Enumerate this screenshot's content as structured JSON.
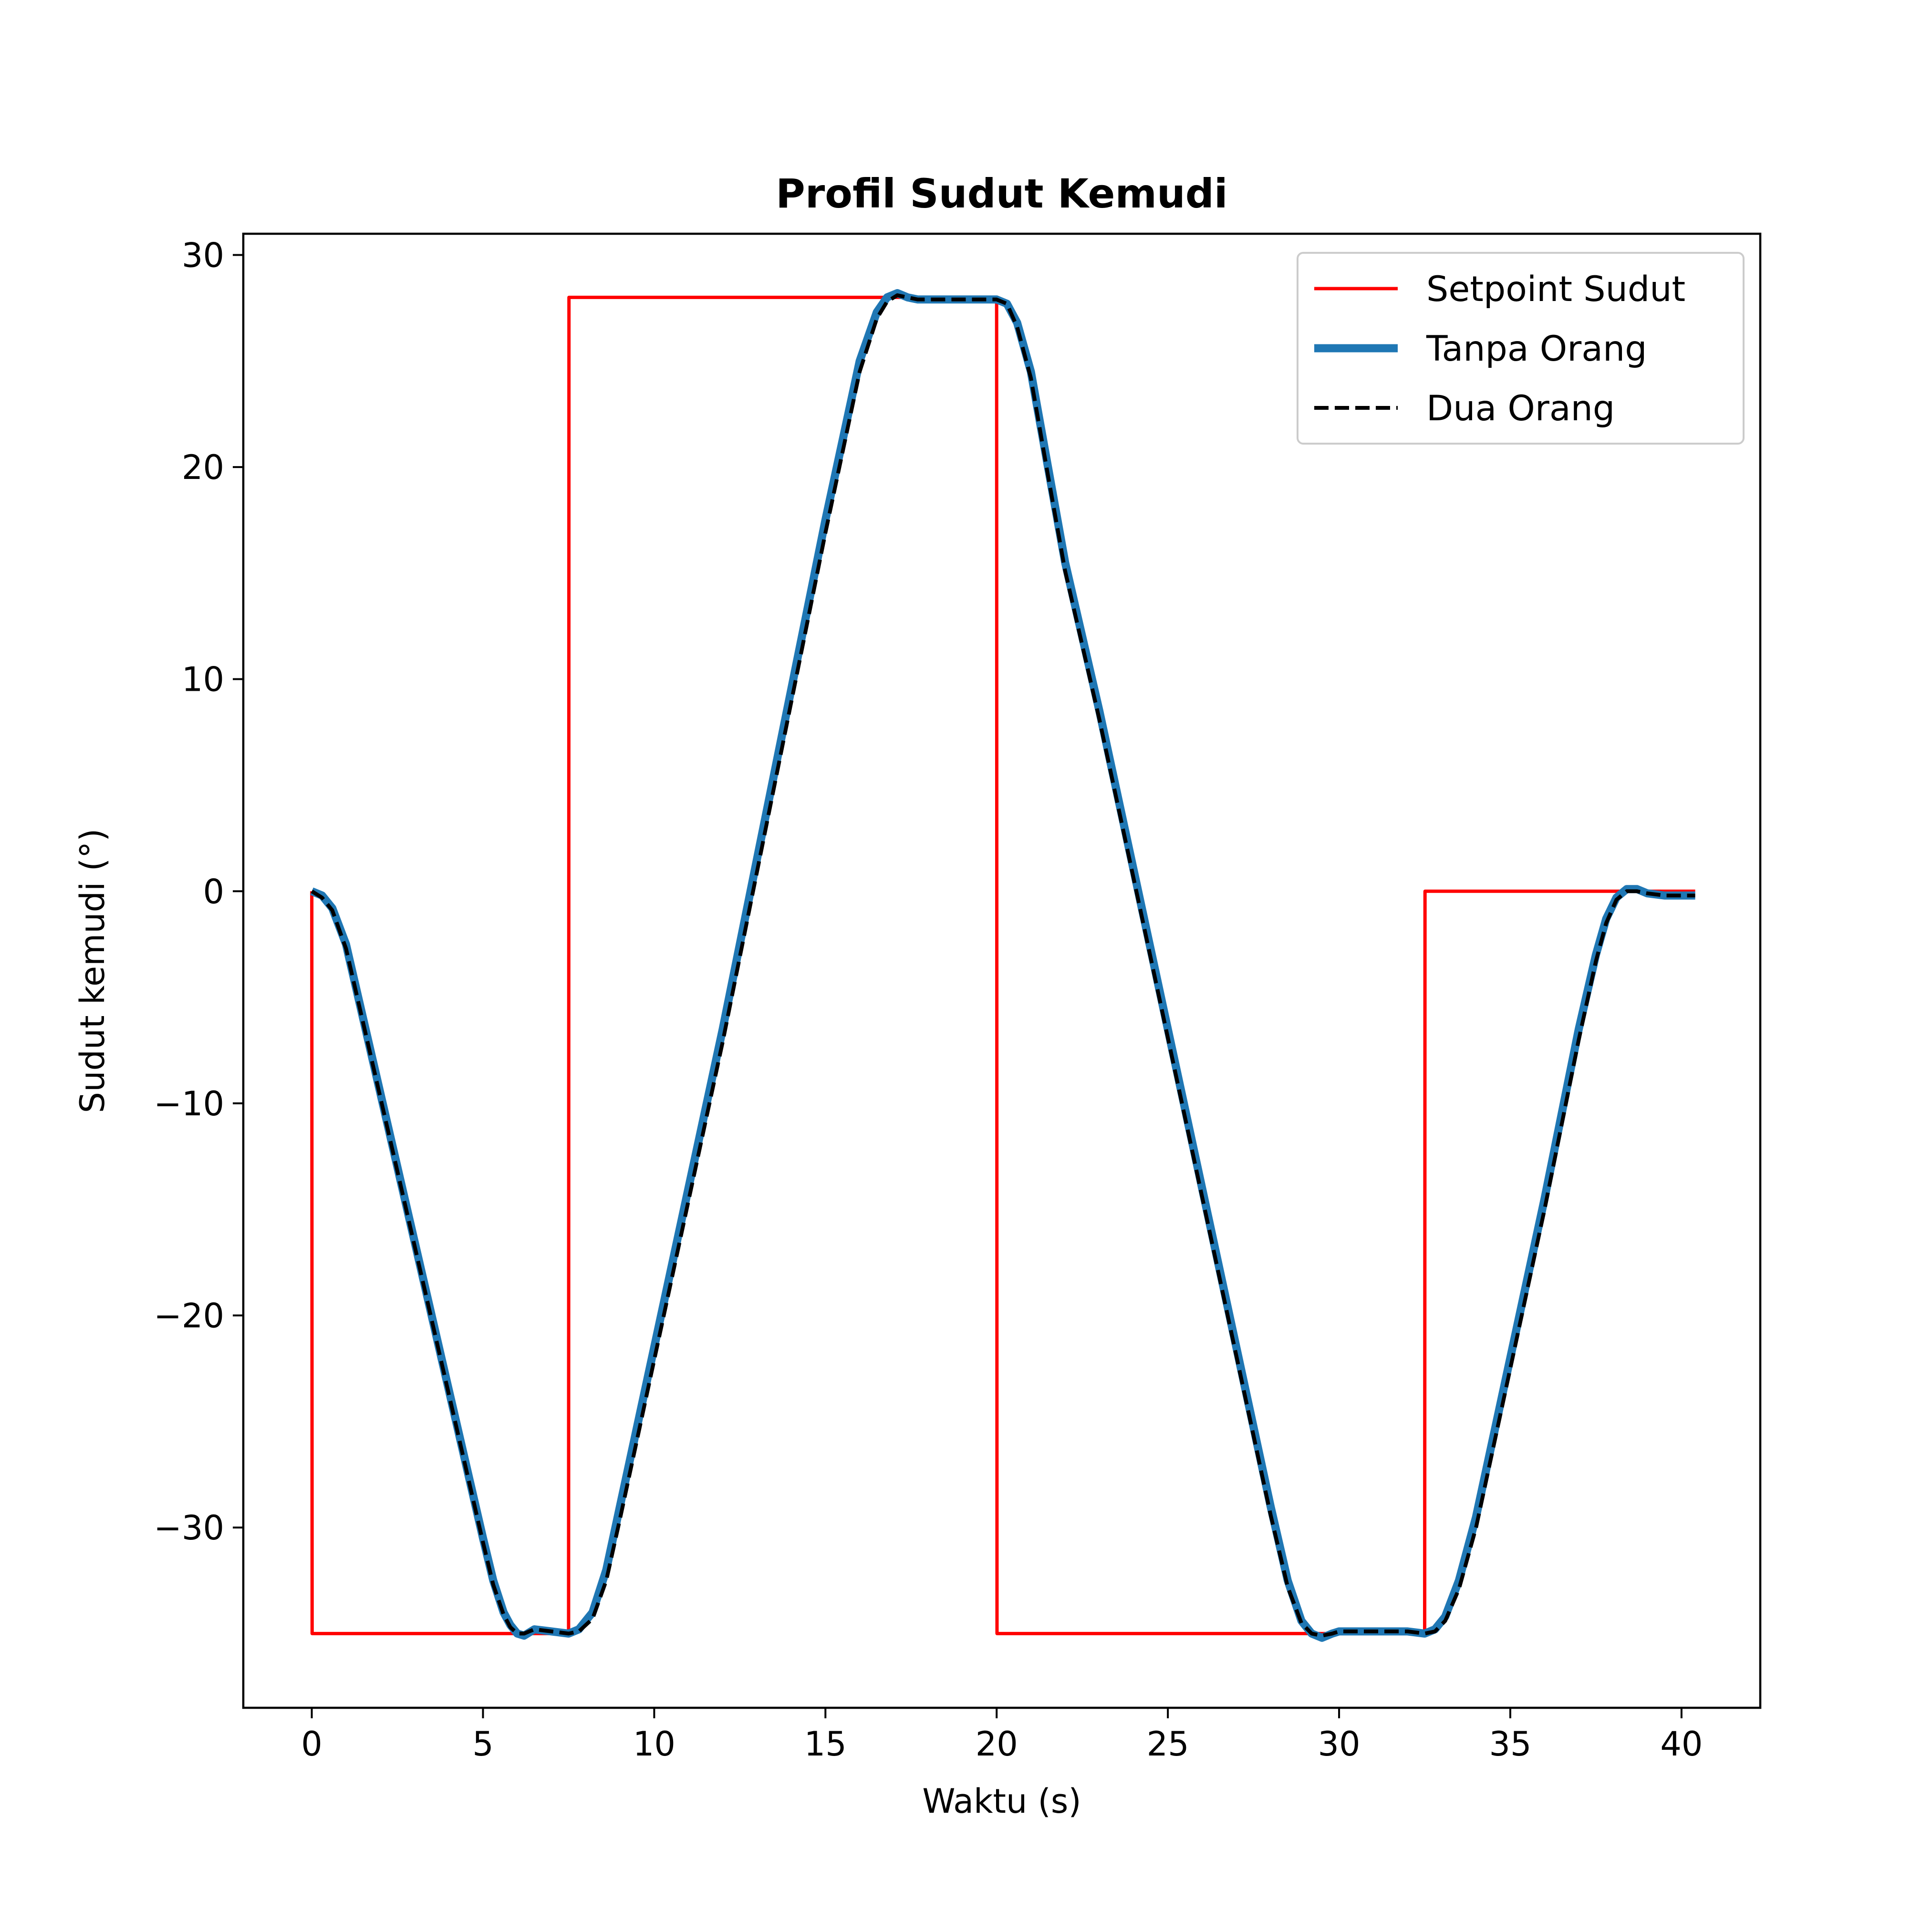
{
  "chart_data": {
    "type": "line",
    "title": "Profil Sudut Kemudi",
    "xlabel": "Waktu (s)",
    "ylabel": "Sudut kemudi (°)",
    "xlim": [
      -2.0,
      42.3
    ],
    "ylim": [
      -38.5,
      31.0
    ],
    "xticks": [
      0,
      5,
      10,
      15,
      20,
      25,
      30,
      35,
      40
    ],
    "xtick_labels": [
      "0",
      "5",
      "10",
      "15",
      "20",
      "25",
      "30",
      "35",
      "40"
    ],
    "yticks": [
      30,
      20,
      10,
      0,
      -10,
      -20,
      -30
    ],
    "ytick_labels": [
      "30",
      "20",
      "10",
      "0",
      "−10",
      "−20",
      "−30"
    ],
    "grid": false,
    "legend_position": "top-right",
    "series": [
      {
        "name": "Setpoint Sudut",
        "color": "#ff0000",
        "style": "solid",
        "x": [
          0,
          0.01,
          7.5,
          7.51,
          20.0,
          20.01,
          32.5,
          32.51,
          40.4
        ],
        "y": [
          0,
          -35,
          -35,
          28,
          28,
          -35,
          -35,
          0,
          0
        ]
      },
      {
        "name": "Tanpa Orang",
        "color": "#1f77b4",
        "style": "solid",
        "x": [
          0,
          0.3,
          0.6,
          1.0,
          1.5,
          2.0,
          3.0,
          4.0,
          5.0,
          5.3,
          5.6,
          5.8,
          6.0,
          6.2,
          6.5,
          7.0,
          7.5,
          7.8,
          8.2,
          8.6,
          9.0,
          10.0,
          11.0,
          12.0,
          13.0,
          14.0,
          15.0,
          16.0,
          16.5,
          16.8,
          17.1,
          17.4,
          17.7,
          18.0,
          18.5,
          19.0,
          19.5,
          20.0,
          20.3,
          20.6,
          21.0,
          21.5,
          22.0,
          23.0,
          24.0,
          25.0,
          26.0,
          27.0,
          28.0,
          28.5,
          28.9,
          29.2,
          29.5,
          29.8,
          30.0,
          30.5,
          31.0,
          31.5,
          32.0,
          32.5,
          32.8,
          33.1,
          33.5,
          34.0,
          35.0,
          36.0,
          37.0,
          37.5,
          37.8,
          38.1,
          38.4,
          38.7,
          39.0,
          39.5,
          40.0,
          40.4
        ],
        "y": [
          0,
          -0.2,
          -0.8,
          -2.5,
          -6.0,
          -9.5,
          -16.5,
          -23.5,
          -30.5,
          -32.5,
          -34.0,
          -34.6,
          -35.0,
          -35.1,
          -34.8,
          -34.9,
          -35.0,
          -34.8,
          -34.0,
          -32.0,
          -29.0,
          -21.5,
          -14.0,
          -6.5,
          1.5,
          9.5,
          17.5,
          25.0,
          27.3,
          28.0,
          28.2,
          28.0,
          27.9,
          27.9,
          27.9,
          27.9,
          27.9,
          27.9,
          27.7,
          26.8,
          24.5,
          20.0,
          15.5,
          8.5,
          1.0,
          -6.5,
          -14.0,
          -21.5,
          -29.0,
          -32.5,
          -34.4,
          -35.0,
          -35.2,
          -35.0,
          -34.9,
          -34.9,
          -34.9,
          -34.9,
          -34.9,
          -35.0,
          -34.8,
          -34.2,
          -32.5,
          -29.5,
          -22.0,
          -14.5,
          -6.5,
          -3.0,
          -1.3,
          -0.3,
          0.1,
          0.1,
          -0.1,
          -0.2,
          -0.2,
          -0.2
        ]
      },
      {
        "name": "Dua Orang",
        "color": "#000000",
        "style": "dashed",
        "x": [
          0,
          0.3,
          0.6,
          1.0,
          1.5,
          2.0,
          3.0,
          4.0,
          5.0,
          5.3,
          5.6,
          5.8,
          6.0,
          6.2,
          6.5,
          7.0,
          7.5,
          7.8,
          8.2,
          8.6,
          9.0,
          10.0,
          11.0,
          12.0,
          13.0,
          14.0,
          15.0,
          16.0,
          16.5,
          16.8,
          17.1,
          17.4,
          17.7,
          18.0,
          18.5,
          19.0,
          19.5,
          20.0,
          20.3,
          20.6,
          21.0,
          21.5,
          22.0,
          23.0,
          24.0,
          25.0,
          26.0,
          27.0,
          28.0,
          28.5,
          28.9,
          29.2,
          29.5,
          29.8,
          30.0,
          30.5,
          31.0,
          31.5,
          32.0,
          32.5,
          32.8,
          33.1,
          33.5,
          34.0,
          35.0,
          36.0,
          37.0,
          37.5,
          37.8,
          38.1,
          38.4,
          38.7,
          39.0,
          39.5,
          40.0,
          40.4
        ],
        "y": [
          0,
          -0.3,
          -0.9,
          -2.7,
          -6.2,
          -9.7,
          -16.7,
          -23.7,
          -30.7,
          -32.7,
          -34.1,
          -34.7,
          -35.0,
          -35.0,
          -34.8,
          -34.9,
          -35.0,
          -34.9,
          -34.3,
          -32.5,
          -29.6,
          -22.1,
          -14.6,
          -7.1,
          0.9,
          8.9,
          16.9,
          24.5,
          27.0,
          27.8,
          28.1,
          28.0,
          27.9,
          27.9,
          27.9,
          27.9,
          27.9,
          27.9,
          27.7,
          26.6,
          24.2,
          19.6,
          15.1,
          8.1,
          0.6,
          -6.9,
          -14.4,
          -21.9,
          -29.4,
          -32.8,
          -34.5,
          -35.0,
          -35.1,
          -35.0,
          -34.9,
          -34.9,
          -34.9,
          -34.9,
          -34.9,
          -35.0,
          -34.9,
          -34.4,
          -32.9,
          -30.0,
          -22.5,
          -15.0,
          -7.0,
          -3.3,
          -1.5,
          -0.4,
          0.0,
          0.0,
          -0.1,
          -0.2,
          -0.2,
          -0.2
        ]
      }
    ]
  }
}
